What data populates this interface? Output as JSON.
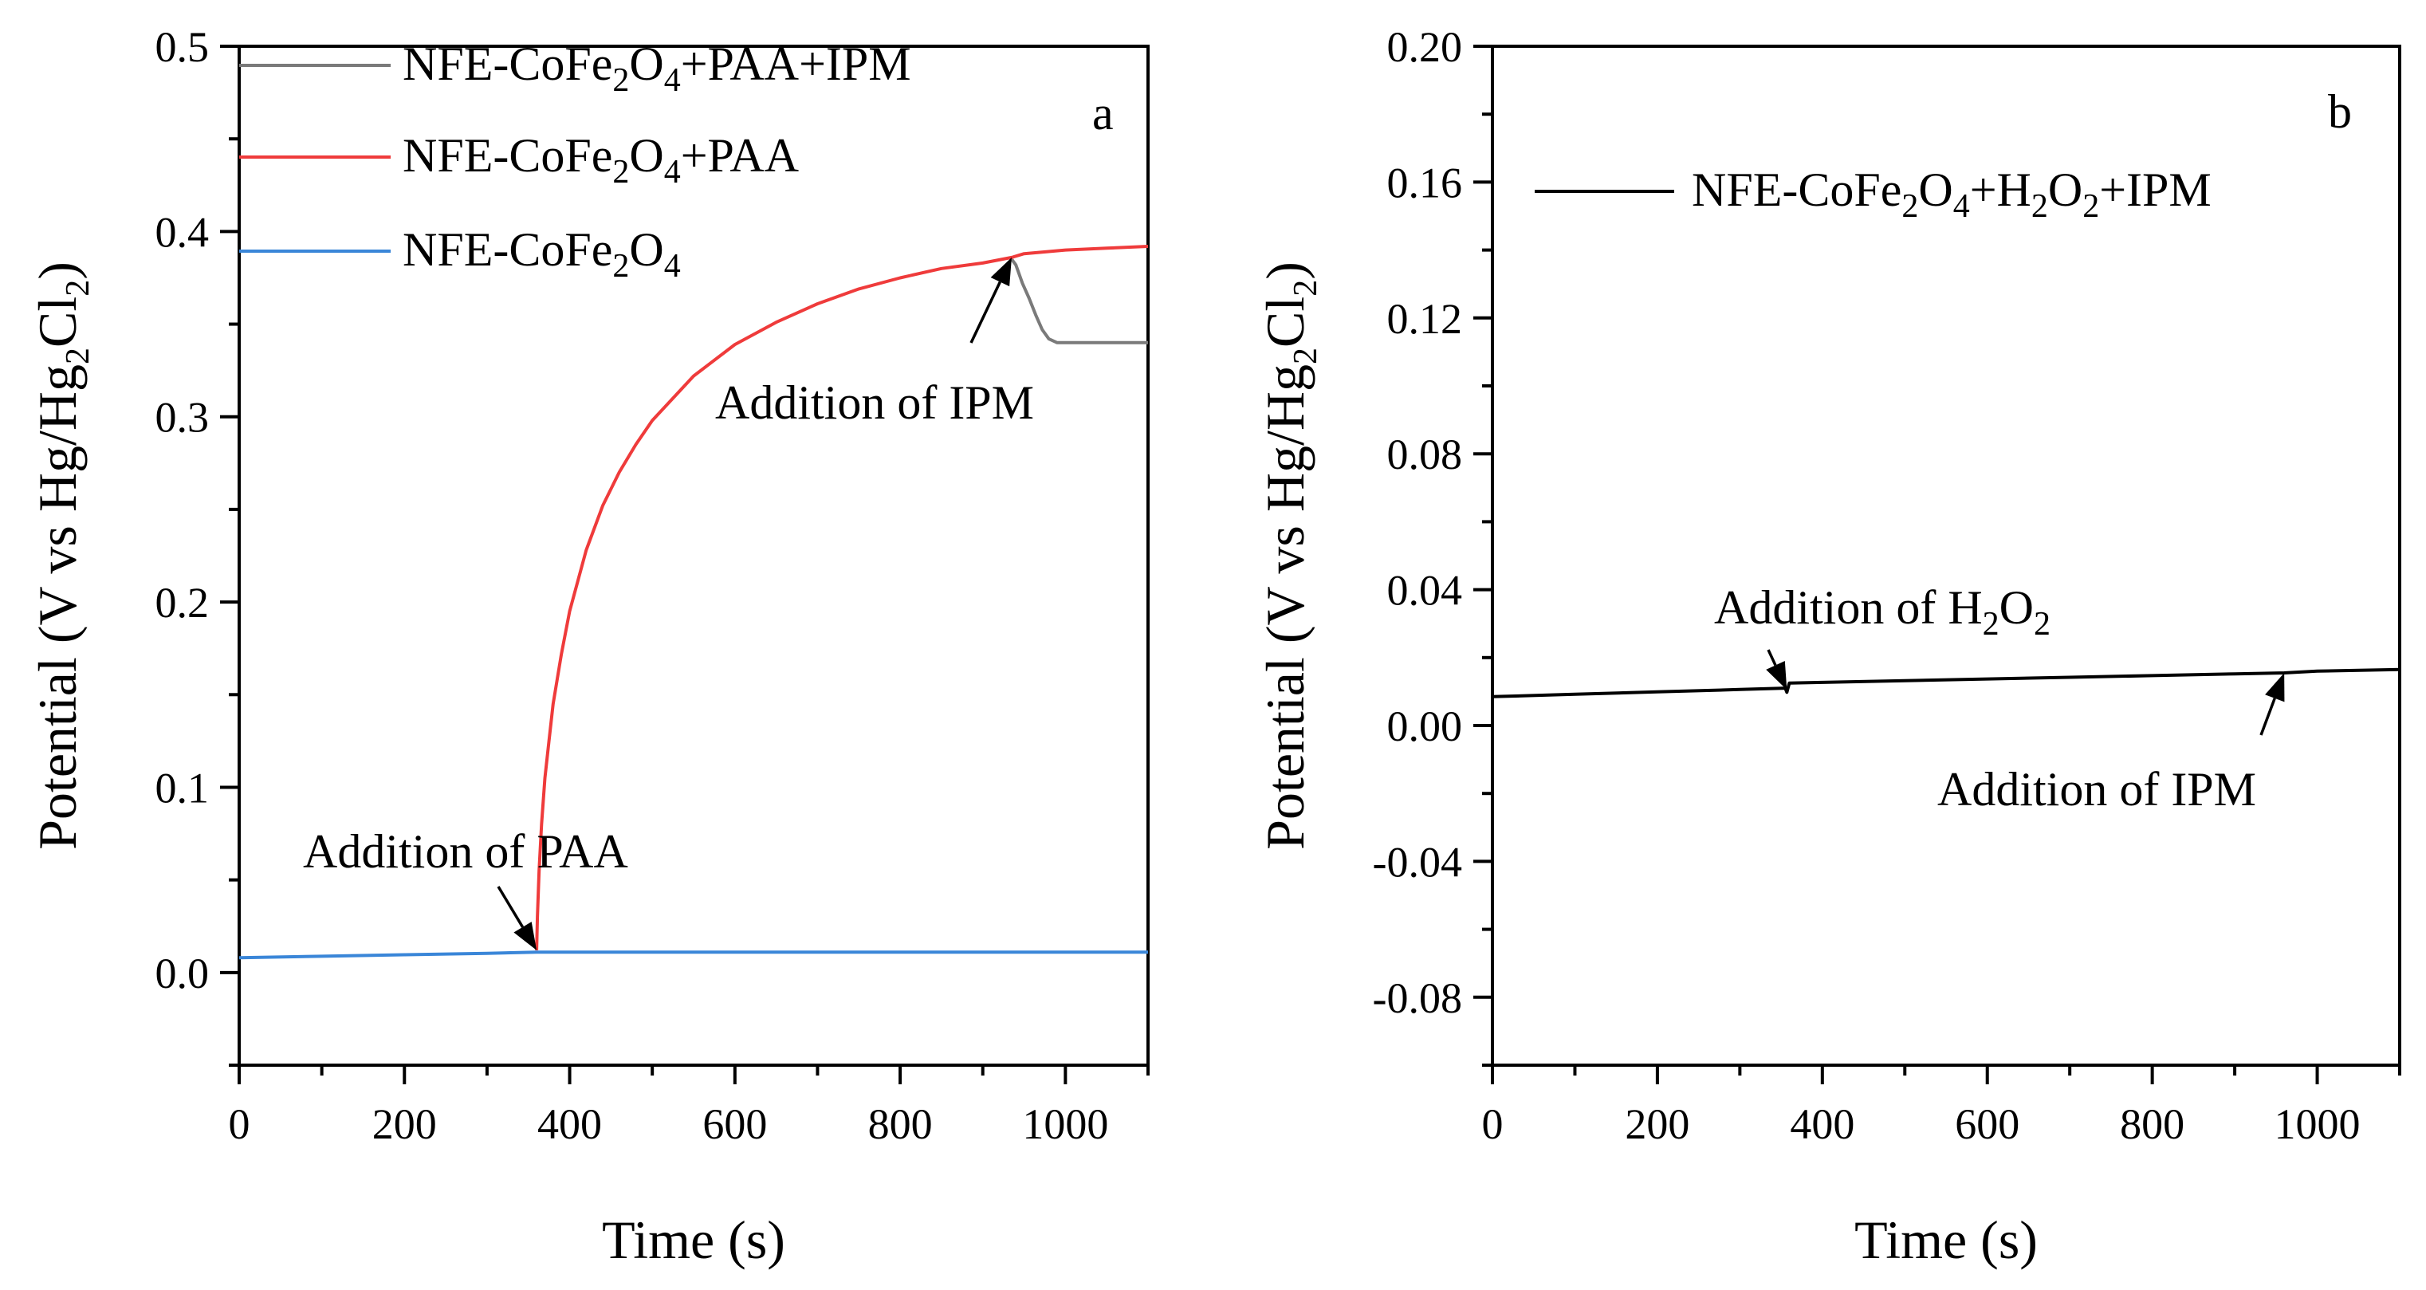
{
  "chart_data": [
    {
      "type": "line",
      "panel_label": "a",
      "xlabel": "Time (s)",
      "ylabel": {
        "main": "Potential (V vs Hg/Hg",
        "sub1": "2",
        "mid": "Cl",
        "sub2": "2",
        "end": ")"
      },
      "xlim": [
        0,
        1100
      ],
      "ylim": [
        -0.05,
        0.5
      ],
      "xticks": [
        0,
        200,
        400,
        600,
        800,
        1000
      ],
      "yticks": [
        0.0,
        0.1,
        0.2,
        0.3,
        0.4,
        0.5
      ],
      "ytick_labels": [
        "0.0",
        "0.1",
        "0.2",
        "0.3",
        "0.4",
        "0.5"
      ],
      "legend_position": "top-left",
      "series": [
        {
          "name": "NFE-CoFe2O4+PAA+IPM",
          "label_parts": [
            [
              "NFE-CoFe",
              ""
            ],
            [
              "2",
              "sub"
            ],
            [
              "O",
              ""
            ],
            [
              "4",
              "sub"
            ],
            [
              "+PAA+IPM",
              ""
            ]
          ],
          "color": "#7a7a7a",
          "x": [
            935,
            940,
            948,
            956,
            964,
            972,
            980,
            990,
            1000,
            1020,
            1050,
            1080,
            1100
          ],
          "y": [
            0.385,
            0.382,
            0.372,
            0.364,
            0.355,
            0.347,
            0.342,
            0.34,
            0.34,
            0.34,
            0.34,
            0.34,
            0.34
          ]
        },
        {
          "name": "NFE-CoFe2O4+PAA",
          "label_parts": [
            [
              "NFE-CoFe",
              ""
            ],
            [
              "2",
              "sub"
            ],
            [
              "O",
              ""
            ],
            [
              "4",
              "sub"
            ],
            [
              "+PAA",
              ""
            ]
          ],
          "color": "#ef3b3b",
          "x": [
            360,
            361,
            363,
            366,
            370,
            375,
            380,
            390,
            400,
            420,
            440,
            460,
            480,
            500,
            550,
            600,
            650,
            700,
            750,
            800,
            850,
            900,
            935,
            950,
            1000,
            1050,
            1100
          ],
          "y": [
            0.012,
            0.03,
            0.055,
            0.08,
            0.105,
            0.125,
            0.145,
            0.172,
            0.195,
            0.228,
            0.252,
            0.27,
            0.285,
            0.298,
            0.322,
            0.339,
            0.351,
            0.361,
            0.369,
            0.375,
            0.38,
            0.383,
            0.386,
            0.388,
            0.39,
            0.391,
            0.392
          ]
        },
        {
          "name": "NFE-CoFe2O4",
          "label_parts": [
            [
              "NFE-CoFe",
              ""
            ],
            [
              "2",
              "sub"
            ],
            [
              "O",
              ""
            ],
            [
              "4",
              "sub"
            ]
          ],
          "color": "#3a86d8",
          "x": [
            0,
            100,
            200,
            300,
            360,
            500,
            700,
            900,
            1100
          ],
          "y": [
            0.008,
            0.0088,
            0.0096,
            0.0104,
            0.011,
            0.011,
            0.011,
            0.011,
            0.011
          ]
        }
      ],
      "annotations": [
        {
          "text": "Addition of PAA",
          "parts": [
            [
              "Addition of PAA",
              ""
            ]
          ],
          "at": [
            360,
            0.012
          ]
        },
        {
          "text": "Addition of IPM",
          "parts": [
            [
              "Addition of IPM",
              ""
            ]
          ],
          "at": [
            935,
            0.386
          ]
        }
      ]
    },
    {
      "type": "line",
      "panel_label": "b",
      "xlabel": "Time (s)",
      "ylabel": {
        "main": "Potential (V vs Hg/Hg",
        "sub1": "2",
        "mid": "Cl",
        "sub2": "2",
        "end": ")"
      },
      "xlim": [
        0,
        1100
      ],
      "ylim": [
        -0.1,
        0.2
      ],
      "xticks": [
        0,
        200,
        400,
        600,
        800,
        1000
      ],
      "yticks": [
        -0.08,
        -0.04,
        0.0,
        0.04,
        0.08,
        0.12,
        0.16,
        0.2
      ],
      "ytick_labels": [
        "-0.08",
        "-0.04",
        "0.00",
        "0.04",
        "0.08",
        "0.12",
        "0.16",
        "0.20"
      ],
      "legend_position": "top-right",
      "series": [
        {
          "name": "NFE-CoFe2O4+H2O2+IPM",
          "label_parts": [
            [
              "NFE-CoFe",
              ""
            ],
            [
              "2",
              "sub"
            ],
            [
              "O",
              ""
            ],
            [
              "4",
              "sub"
            ],
            [
              "+H",
              ""
            ],
            [
              "2",
              "sub"
            ],
            [
              "O",
              ""
            ],
            [
              "2",
              "sub"
            ],
            [
              "+IPM",
              ""
            ]
          ],
          "color": "#000000",
          "x": [
            0,
            100,
            200,
            300,
            355,
            357,
            360,
            400,
            500,
            600,
            700,
            800,
            900,
            960,
            1000,
            1100
          ],
          "y": [
            0.0085,
            0.0092,
            0.0099,
            0.0106,
            0.011,
            0.0098,
            0.0125,
            0.0127,
            0.0132,
            0.0137,
            0.0142,
            0.0147,
            0.0152,
            0.0155,
            0.016,
            0.0165
          ]
        }
      ],
      "annotations": [
        {
          "text": "Addition of H2O2",
          "parts": [
            [
              "Addition of H",
              ""
            ],
            [
              "2",
              "sub"
            ],
            [
              "O",
              ""
            ],
            [
              "2",
              "sub"
            ]
          ],
          "at": [
            357,
            0.0105
          ]
        },
        {
          "text": "Addition of IPM",
          "parts": [
            [
              "Addition of IPM",
              ""
            ]
          ],
          "at": [
            960,
            0.0155
          ]
        }
      ]
    }
  ]
}
